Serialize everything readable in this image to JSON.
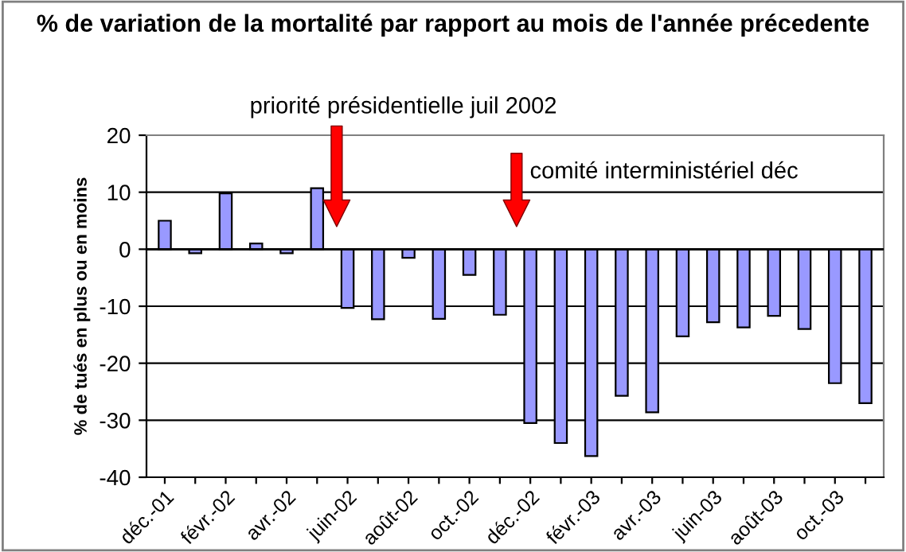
{
  "chart_data": {
    "type": "bar",
    "title": "% de variation de la mortalité par rapport au mois de l'année précedente",
    "ylabel": "% de tués en plus ou en moins",
    "categories": [
      "déc.-01",
      null,
      "févr.-02",
      null,
      "avr.-02",
      null,
      "juin-02",
      null,
      "août-02",
      null,
      "oct.-02",
      null,
      "déc.-02",
      null,
      "févr.-03",
      null,
      "avr.-03",
      null,
      "juin-03",
      null,
      "août-03",
      null,
      "oct.-03",
      null
    ],
    "values": [
      5,
      -0.7,
      9.8,
      1,
      -0.7,
      10.7,
      -10.3,
      -12.3,
      -1.5,
      -12.2,
      -4.5,
      -11.5,
      -30.5,
      -34,
      -36.3,
      -25.7,
      -28.6,
      -15.3,
      -12.8,
      -13.7,
      -11.7,
      -14,
      -23.5,
      -27
    ],
    "color": "#9999ff",
    "ylim": [
      -40,
      20
    ],
    "yticks": [
      -40,
      -30,
      -20,
      -10,
      0,
      10,
      20
    ],
    "grid": "y",
    "annotations": [
      "priorité présidentielle juil 2002",
      "comité interministériel déc"
    ]
  }
}
